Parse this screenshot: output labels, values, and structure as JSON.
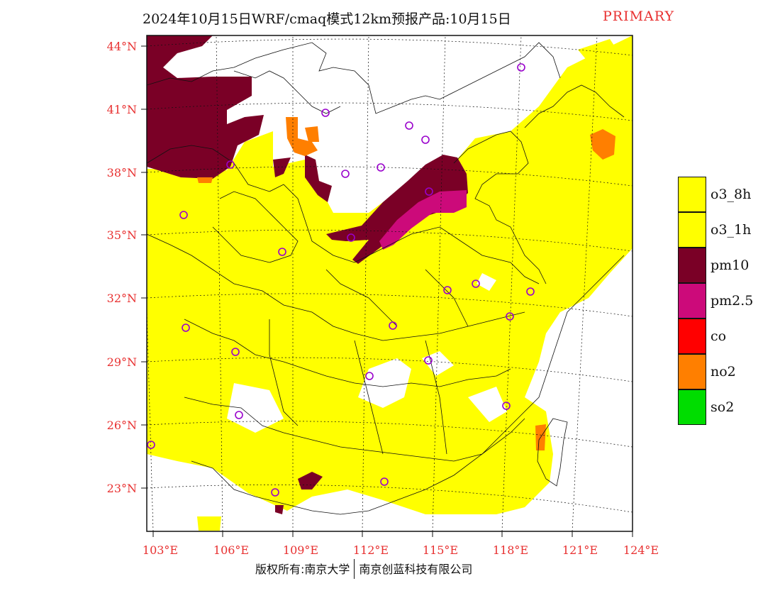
{
  "title": {
    "main": "2024年10月15日WRF/cmaq模式12km预报产品:10月15日",
    "tag": "PRIMARY"
  },
  "map": {
    "lat_labels": [
      "44°N",
      "41°N",
      "38°N",
      "35°N",
      "32°N",
      "29°N",
      "26°N",
      "23°N"
    ],
    "lon_labels": [
      "103°E",
      "106°E",
      "109°E",
      "112°E",
      "115°E",
      "118°E",
      "121°E",
      "124°E"
    ],
    "label_color": "#e83030",
    "pollutant_colors": {
      "o3": "#ffff00",
      "pm10": "#7a0026",
      "pm25": "#cc0a7a",
      "co": "#ff0000",
      "no2": "#ff7f00",
      "so2": "#00dd00",
      "station_marker": "#9900cc"
    }
  },
  "legend": [
    {
      "label": "o3_8h",
      "color": "#ffff00"
    },
    {
      "label": "o3_1h",
      "color": "#ffff00"
    },
    {
      "label": "pm10",
      "color": "#7a0026"
    },
    {
      "label": "pm2.5",
      "color": "#cc0a7a"
    },
    {
      "label": "co",
      "color": "#ff0000"
    },
    {
      "label": "no2",
      "color": "#ff7f00"
    },
    {
      "label": "so2",
      "color": "#00dd00"
    }
  ],
  "footer": {
    "left": "版权所有:南京大学",
    "right": "南京创蓝科技有限公司"
  }
}
